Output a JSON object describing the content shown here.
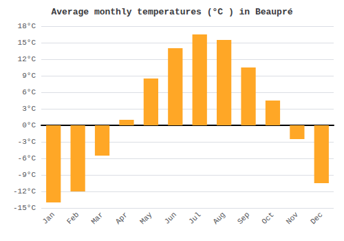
{
  "chart_data": {
    "type": "bar",
    "title": "Average monthly temperatures (°C ) in Beaupré",
    "categories": [
      "Jan",
      "Feb",
      "Mar",
      "Apr",
      "May",
      "Jun",
      "Jul",
      "Aug",
      "Sep",
      "Oct",
      "Nov",
      "Dec"
    ],
    "values": [
      -14,
      -12,
      -5.5,
      1,
      8.5,
      14,
      16.5,
      15.5,
      10.5,
      4.5,
      -2.5,
      -10.5
    ],
    "color": "#FFA726",
    "ylim": [
      -15,
      18
    ],
    "yticks": [
      {
        "value": -15,
        "label": "-15°C"
      },
      {
        "value": -12,
        "label": "-12°C"
      },
      {
        "value": -9,
        "label": "-9°C"
      },
      {
        "value": -6,
        "label": "-6°C"
      },
      {
        "value": -3,
        "label": "-3°C"
      },
      {
        "value": 0,
        "label": "0°C"
      },
      {
        "value": 3,
        "label": "3°C"
      },
      {
        "value": 6,
        "label": "6°C"
      },
      {
        "value": 9,
        "label": "9°C"
      },
      {
        "value": 12,
        "label": "12°C"
      },
      {
        "value": 15,
        "label": "15°C"
      },
      {
        "value": 18,
        "label": "18°C"
      }
    ],
    "grid": true
  }
}
